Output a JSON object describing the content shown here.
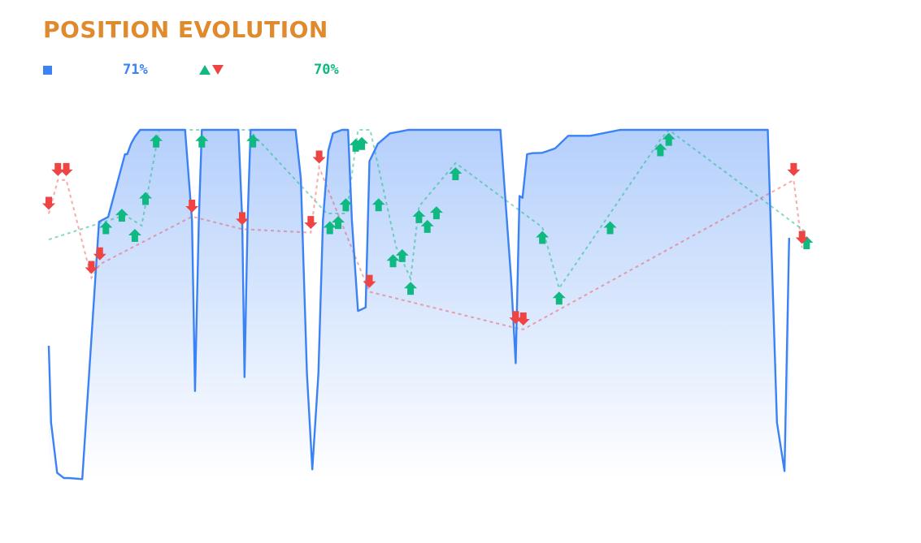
{
  "header": {
    "title": "POSITION EVOLUTION"
  },
  "legend": {
    "position_pct": "71%",
    "signal_pct": "70%",
    "position_color": "#3b82f6",
    "buy_color": "#10b981",
    "sell_color": "#ef4444"
  },
  "chart_data": {
    "type": "area",
    "title": "POSITION EVOLUTION",
    "xlabel": "",
    "ylabel": "",
    "xlim": [
      0,
      100
    ],
    "ylim": [
      0,
      100
    ],
    "grid": false,
    "series": [
      {
        "x": [
          0,
          0.3,
          1.1,
          2,
          2.7,
          4.4,
          6.6,
          7.1,
          7.8,
          10,
          10.3,
          10.8,
          11.3,
          12,
          12.8,
          13.5,
          14.4,
          15.4,
          16.4,
          17.9,
          18.8,
          19.2,
          19.7,
          20.1,
          20.6,
          21.3,
          22.4,
          24.9,
          25.4,
          25.7,
          26.1,
          26.5,
          27.4,
          28.5,
          31.9,
          32.4,
          33.1,
          33.9,
          34.6,
          35.4,
          36,
          36.7,
          37.3,
          38.5,
          39.3,
          39.8,
          40.6,
          41.6,
          42.1,
          43.2,
          44.8,
          46.1,
          47.2,
          49.1,
          59.3,
          60.7,
          61.3,
          61.8,
          62.2,
          62.8,
          63.5,
          64.8,
          66.5,
          68.2,
          69.2,
          70.1,
          71.1,
          75,
          76.3,
          77,
          84.6,
          94.4,
          95.6,
          96.6,
          97.2
        ],
        "y": [
          38,
          16,
          1.5,
          0,
          0,
          -0.3,
          73.6,
          74.2,
          75,
          93,
          93,
          96,
          98,
          100,
          100,
          100,
          100,
          100,
          100,
          100,
          74,
          25,
          74,
          100,
          100,
          100,
          100,
          100,
          74,
          29,
          74,
          100,
          100,
          100,
          100,
          100,
          86,
          30,
          2.5,
          30,
          74,
          94,
          99,
          100,
          100,
          74,
          48,
          49,
          91,
          96,
          99,
          99.5,
          100,
          100,
          100,
          57,
          33,
          81,
          80.5,
          93,
          93.3,
          93.4,
          94.7,
          98.3,
          98.3,
          98.3,
          98.3,
          100,
          100,
          100,
          100,
          100,
          16,
          2,
          69
        ]
      }
    ],
    "buy_signals": [
      {
        "x": 7.5,
        "y": 71.9
      },
      {
        "x": 9.6,
        "y": 75.5
      },
      {
        "x": 11.3,
        "y": 69.7
      },
      {
        "x": 12.7,
        "y": 80.3
      },
      {
        "x": 14.1,
        "y": 96.8
      },
      {
        "x": 20.1,
        "y": 96.8
      },
      {
        "x": 26.8,
        "y": 96.8
      },
      {
        "x": 36.9,
        "y": 71.9
      },
      {
        "x": 38,
        "y": 73.4
      },
      {
        "x": 39,
        "y": 78.5
      },
      {
        "x": 40.3,
        "y": 95.6
      },
      {
        "x": 41.1,
        "y": 96.1
      },
      {
        "x": 43.3,
        "y": 78.5
      },
      {
        "x": 45.2,
        "y": 62.4
      },
      {
        "x": 46.4,
        "y": 63.9
      },
      {
        "x": 47.5,
        "y": 54.5
      },
      {
        "x": 48.6,
        "y": 75.1
      },
      {
        "x": 49.7,
        "y": 72.3
      },
      {
        "x": 50.9,
        "y": 76.2
      },
      {
        "x": 53.4,
        "y": 87.4
      },
      {
        "x": 64.8,
        "y": 69.1
      },
      {
        "x": 67,
        "y": 51.7
      },
      {
        "x": 73.7,
        "y": 71.9
      },
      {
        "x": 80.3,
        "y": 94.3
      },
      {
        "x": 81.4,
        "y": 97.3
      },
      {
        "x": 99.5,
        "y": 67.6
      }
    ],
    "sell_signals": [
      {
        "x": 0,
        "y": 78.9
      },
      {
        "x": 1.2,
        "y": 88.6
      },
      {
        "x": 2.3,
        "y": 88.6
      },
      {
        "x": 5.6,
        "y": 60.5
      },
      {
        "x": 6.7,
        "y": 64.4
      },
      {
        "x": 18.8,
        "y": 78.1
      },
      {
        "x": 25.4,
        "y": 74.5
      },
      {
        "x": 34.4,
        "y": 73.4
      },
      {
        "x": 35.5,
        "y": 92.2
      },
      {
        "x": 42.1,
        "y": 56.5
      },
      {
        "x": 61.3,
        "y": 46.1
      },
      {
        "x": 62.3,
        "y": 45.7
      },
      {
        "x": 97.8,
        "y": 88.6
      },
      {
        "x": 98.9,
        "y": 69.1
      }
    ],
    "buy_trend": [
      {
        "x": 0,
        "y": 68.5
      },
      {
        "x": 10,
        "y": 75.5
      },
      {
        "x": 12.2,
        "y": 72.5
      },
      {
        "x": 14.5,
        "y": 100
      },
      {
        "x": 26.3,
        "y": 100
      },
      {
        "x": 36.5,
        "y": 76
      },
      {
        "x": 39.1,
        "y": 76
      },
      {
        "x": 40.6,
        "y": 100
      },
      {
        "x": 42.2,
        "y": 100
      },
      {
        "x": 45.6,
        "y": 66.4
      },
      {
        "x": 47.5,
        "y": 57.3
      },
      {
        "x": 48.6,
        "y": 78
      },
      {
        "x": 53.4,
        "y": 90.5
      },
      {
        "x": 64.8,
        "y": 72
      },
      {
        "x": 67,
        "y": 54.5
      },
      {
        "x": 80.3,
        "y": 97.2
      },
      {
        "x": 81.4,
        "y": 100
      },
      {
        "x": 99.5,
        "y": 70.5
      }
    ],
    "sell_trend": [
      {
        "x": 0,
        "y": 75.9
      },
      {
        "x": 1.2,
        "y": 85.6
      },
      {
        "x": 2.3,
        "y": 85.6
      },
      {
        "x": 5.6,
        "y": 57.5
      },
      {
        "x": 6.7,
        "y": 61.4
      },
      {
        "x": 18.8,
        "y": 75.1
      },
      {
        "x": 25.4,
        "y": 71.5
      },
      {
        "x": 34.4,
        "y": 70.5
      },
      {
        "x": 35.5,
        "y": 89.2
      },
      {
        "x": 42.1,
        "y": 53.5
      },
      {
        "x": 61.3,
        "y": 43.1
      },
      {
        "x": 62.3,
        "y": 42.7
      },
      {
        "x": 97.8,
        "y": 85.6
      },
      {
        "x": 98.9,
        "y": 66.1
      }
    ]
  }
}
